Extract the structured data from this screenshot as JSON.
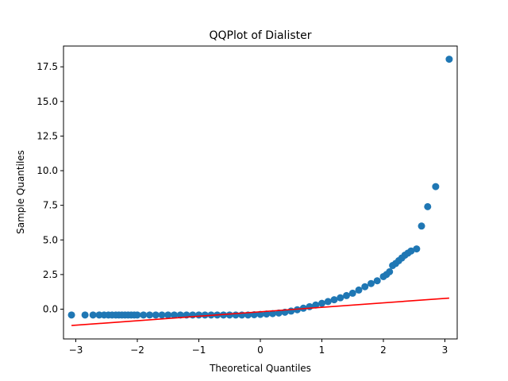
{
  "chart_data": {
    "type": "scatter",
    "title": "QQPlot of Dialister",
    "xlabel": "Theoretical Quantiles",
    "ylabel": "Sample Quantiles",
    "xlim": [
      -3.2,
      3.2
    ],
    "ylim": [
      -2.15,
      19.0
    ],
    "x_ticks": [
      -3,
      -2,
      -1,
      0,
      1,
      2,
      3
    ],
    "x_tick_labels": [
      "−3",
      "−2",
      "−1",
      "0",
      "1",
      "2",
      "3"
    ],
    "y_ticks": [
      0.0,
      2.5,
      5.0,
      7.5,
      10.0,
      12.5,
      15.0,
      17.5
    ],
    "y_tick_labels": [
      "0.0",
      "2.5",
      "5.0",
      "7.5",
      "10.0",
      "12.5",
      "15.0",
      "17.5"
    ],
    "grid": false,
    "marker_color": "#1f77b4",
    "line_color": "#ff0000",
    "scatter_points": [
      [
        -3.07,
        -0.42
      ],
      [
        -2.85,
        -0.42
      ],
      [
        -2.72,
        -0.42
      ],
      [
        -2.62,
        -0.42
      ],
      [
        -2.54,
        -0.42
      ],
      [
        -2.47,
        -0.42
      ],
      [
        -2.41,
        -0.42
      ],
      [
        -2.35,
        -0.42
      ],
      [
        -2.3,
        -0.42
      ],
      [
        -2.25,
        -0.42
      ],
      [
        -2.2,
        -0.42
      ],
      [
        -2.15,
        -0.42
      ],
      [
        -2.1,
        -0.42
      ],
      [
        -2.05,
        -0.42
      ],
      [
        -2.0,
        -0.42
      ],
      [
        -1.9,
        -0.42
      ],
      [
        -1.8,
        -0.42
      ],
      [
        -1.7,
        -0.42
      ],
      [
        -1.6,
        -0.42
      ],
      [
        -1.5,
        -0.42
      ],
      [
        -1.4,
        -0.42
      ],
      [
        -1.3,
        -0.42
      ],
      [
        -1.2,
        -0.42
      ],
      [
        -1.1,
        -0.42
      ],
      [
        -1.0,
        -0.42
      ],
      [
        -0.9,
        -0.42
      ],
      [
        -0.8,
        -0.42
      ],
      [
        -0.7,
        -0.42
      ],
      [
        -0.6,
        -0.42
      ],
      [
        -0.5,
        -0.42
      ],
      [
        -0.4,
        -0.42
      ],
      [
        -0.3,
        -0.42
      ],
      [
        -0.2,
        -0.42
      ],
      [
        -0.1,
        -0.4
      ],
      [
        0.0,
        -0.38
      ],
      [
        0.1,
        -0.35
      ],
      [
        0.2,
        -0.32
      ],
      [
        0.3,
        -0.28
      ],
      [
        0.4,
        -0.22
      ],
      [
        0.5,
        -0.14
      ],
      [
        0.6,
        -0.04
      ],
      [
        0.7,
        0.07
      ],
      [
        0.8,
        0.18
      ],
      [
        0.9,
        0.3
      ],
      [
        1.0,
        0.42
      ],
      [
        1.1,
        0.55
      ],
      [
        1.2,
        0.68
      ],
      [
        1.3,
        0.82
      ],
      [
        1.4,
        0.98
      ],
      [
        1.5,
        1.15
      ],
      [
        1.6,
        1.38
      ],
      [
        1.7,
        1.62
      ],
      [
        1.8,
        1.85
      ],
      [
        1.9,
        2.05
      ],
      [
        2.0,
        2.35
      ],
      [
        2.05,
        2.5
      ],
      [
        2.1,
        2.7
      ],
      [
        2.15,
        3.15
      ],
      [
        2.2,
        3.3
      ],
      [
        2.25,
        3.5
      ],
      [
        2.3,
        3.7
      ],
      [
        2.35,
        3.9
      ],
      [
        2.4,
        4.05
      ],
      [
        2.45,
        4.2
      ],
      [
        2.54,
        4.35
      ],
      [
        2.62,
        6.0
      ],
      [
        2.72,
        7.4
      ],
      [
        2.85,
        8.85
      ],
      [
        3.07,
        18.05
      ]
    ],
    "fit_line": {
      "x": [
        -3.07,
        3.07
      ],
      "y": [
        -1.18,
        0.8
      ]
    }
  }
}
